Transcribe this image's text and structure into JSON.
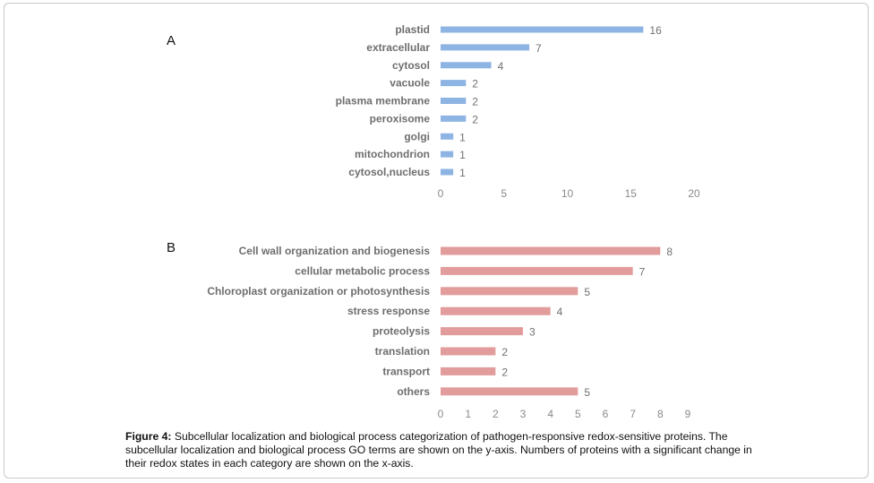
{
  "panels": {
    "a_label": "A",
    "b_label": "B"
  },
  "chart_data": [
    {
      "type": "bar",
      "orientation": "horizontal",
      "panel": "A",
      "categories": [
        "plastid",
        "extracellular",
        "cytosol",
        "vacuole",
        "plasma membrane",
        "peroxisome",
        "golgi",
        "mitochondrion",
        "cytosol,nucleus"
      ],
      "values": [
        16,
        7,
        4,
        2,
        2,
        2,
        1,
        1,
        1
      ],
      "xlim": [
        0,
        20
      ],
      "xticks": [
        0,
        5,
        10,
        15,
        20
      ],
      "bar_color": "#8eb4e3",
      "grid": false,
      "data_labels": true
    },
    {
      "type": "bar",
      "orientation": "horizontal",
      "panel": "B",
      "categories": [
        "Cell wall organization and biogenesis",
        "cellular metabolic process",
        "Chloroplast organization or photosynthesis",
        "stress response",
        "proteolysis",
        "translation",
        "transport",
        "others"
      ],
      "values": [
        8,
        7,
        5,
        4,
        3,
        2,
        2,
        5
      ],
      "xlim": [
        0,
        9
      ],
      "xticks": [
        0,
        1,
        2,
        3,
        4,
        5,
        6,
        7,
        8,
        9
      ],
      "bar_color": "#e39c9c",
      "grid": false,
      "data_labels": true
    }
  ],
  "caption": {
    "figure_label": "Figure 4:",
    "text": " Subcellular localization and biological process categorization of pathogen-responsive redox-sensitive proteins. The subcellular localization and biological process GO terms are shown on the y-axis. Numbers of proteins with a significant change in their redox states in each category are shown on the x-axis."
  }
}
